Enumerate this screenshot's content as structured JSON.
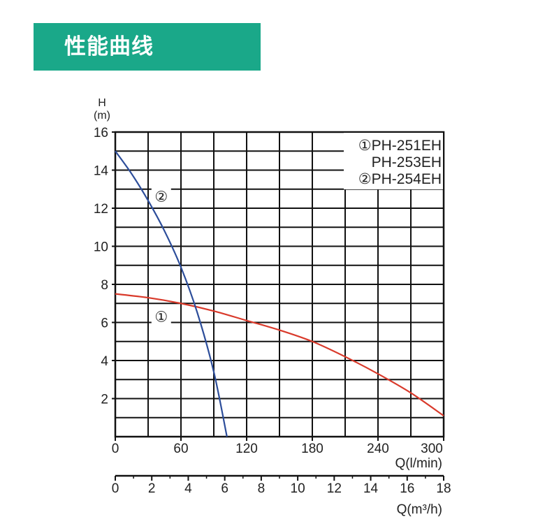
{
  "header": {
    "title": "性能曲线"
  },
  "chart_data": {
    "type": "line",
    "ylabel_top": "H",
    "ylabel_unit": "(m)",
    "ylim": [
      0,
      16
    ],
    "yticks": [
      "2",
      "4",
      "6",
      "8",
      "10",
      "12",
      "14",
      "16"
    ],
    "xlim_lmin": [
      0,
      300
    ],
    "xticks_lmin": [
      "0",
      "60",
      "120",
      "180",
      "240",
      "300"
    ],
    "xlabel_lmin": "Q(l/min)",
    "xlim_m3h": [
      0,
      18
    ],
    "xticks_m3h": [
      "0",
      "2",
      "4",
      "6",
      "8",
      "10",
      "12",
      "14",
      "16",
      "18"
    ],
    "xlabel_m3h": "Q(m³/h)",
    "grid": true,
    "legend": {
      "position": "top-right",
      "lines": [
        "①PH-251EH",
        "PH-253EH",
        "②PH-254EH"
      ]
    },
    "series": [
      {
        "name": "①",
        "color": "#d93a2b",
        "x": [
          0,
          30,
          60,
          90,
          120,
          150,
          180,
          210,
          240,
          270,
          300
        ],
        "y": [
          7.5,
          7.3,
          7.0,
          6.6,
          6.1,
          5.6,
          5.0,
          4.2,
          3.3,
          2.3,
          1.1
        ]
      },
      {
        "name": "②",
        "color": "#2c4d9a",
        "x": [
          0,
          15,
          30,
          45,
          60,
          75,
          90,
          102
        ],
        "y": [
          15.0,
          13.8,
          12.4,
          10.8,
          8.9,
          6.5,
          3.4,
          0
        ]
      }
    ],
    "curve_labels": [
      {
        "text": "②",
        "x": 42,
        "y": 12.6
      },
      {
        "text": "①",
        "x": 42,
        "y": 6.3
      }
    ]
  }
}
